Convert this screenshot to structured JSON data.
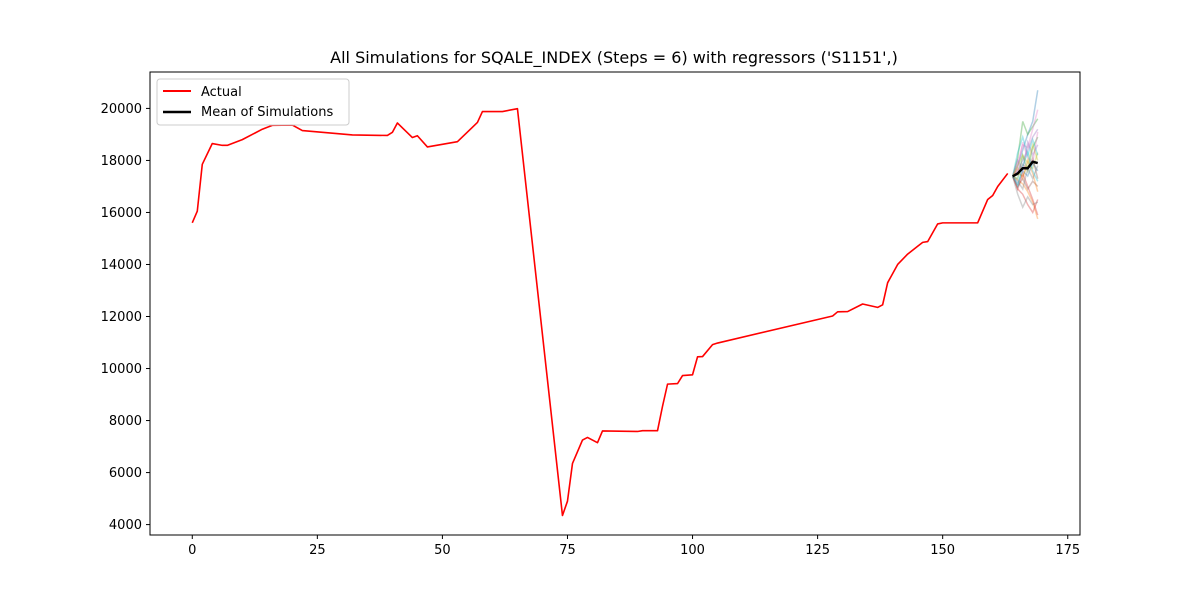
{
  "chart_data": {
    "type": "line",
    "title": "All Simulations for SQALE_INDEX (Steps = 6) with regressors ('S1151',)",
    "xlabel": "",
    "ylabel": "",
    "xlim": [
      -8.45,
      177.45
    ],
    "ylim": [
      3600,
      21400
    ],
    "xticks": [
      0,
      25,
      50,
      75,
      100,
      125,
      150,
      175
    ],
    "yticks": [
      4000,
      6000,
      8000,
      10000,
      12000,
      14000,
      16000,
      18000,
      20000
    ],
    "grid": false,
    "legend": {
      "placement": "top-left",
      "entries": [
        "Actual",
        "Mean of Simulations"
      ]
    },
    "series": [
      {
        "name": "Actual",
        "color": "#ff0000",
        "points": [
          [
            0,
            15600
          ],
          [
            1,
            16050
          ],
          [
            2,
            17850
          ],
          [
            4,
            18650
          ],
          [
            6,
            18580
          ],
          [
            7,
            18580
          ],
          [
            10,
            18800
          ],
          [
            14,
            19200
          ],
          [
            16,
            19350
          ],
          [
            20,
            19360
          ],
          [
            22,
            19150
          ],
          [
            32,
            18980
          ],
          [
            39,
            18960
          ],
          [
            40,
            19080
          ],
          [
            41,
            19440
          ],
          [
            44,
            18880
          ],
          [
            45,
            18950
          ],
          [
            47,
            18520
          ],
          [
            53,
            18720
          ],
          [
            57,
            19460
          ],
          [
            58,
            19880
          ],
          [
            62,
            19880
          ],
          [
            65,
            19990
          ],
          [
            74,
            4350
          ],
          [
            75,
            4900
          ],
          [
            76,
            6350
          ],
          [
            78,
            7250
          ],
          [
            79,
            7350
          ],
          [
            81,
            7150
          ],
          [
            82,
            7600
          ],
          [
            89,
            7580
          ],
          [
            90,
            7610
          ],
          [
            93,
            7610
          ],
          [
            94,
            8550
          ],
          [
            95,
            9400
          ],
          [
            97,
            9420
          ],
          [
            98,
            9730
          ],
          [
            100,
            9760
          ],
          [
            101,
            10450
          ],
          [
            102,
            10460
          ],
          [
            104,
            10920
          ],
          [
            105,
            10980
          ],
          [
            128,
            12020
          ],
          [
            129,
            12180
          ],
          [
            131,
            12190
          ],
          [
            134,
            12480
          ],
          [
            137,
            12350
          ],
          [
            138,
            12450
          ],
          [
            139,
            13300
          ],
          [
            141,
            14000
          ],
          [
            143,
            14400
          ],
          [
            145,
            14700
          ],
          [
            146,
            14850
          ],
          [
            147,
            14880
          ],
          [
            149,
            15560
          ],
          [
            150,
            15600
          ],
          [
            157,
            15600
          ],
          [
            159,
            16500
          ],
          [
            160,
            16650
          ],
          [
            161,
            17000
          ],
          [
            163,
            17500
          ]
        ]
      },
      {
        "name": "Mean of Simulations",
        "color": "#000000",
        "points": [
          [
            164,
            17390
          ],
          [
            165,
            17500
          ],
          [
            166,
            17700
          ],
          [
            167,
            17700
          ],
          [
            168,
            17950
          ],
          [
            169,
            17900
          ]
        ]
      }
    ],
    "simulations": {
      "x": [
        164,
        165,
        166,
        167,
        168,
        169
      ],
      "colors": [
        "#1f77b4",
        "#ff7f0e",
        "#2ca02c",
        "#d62728",
        "#9467bd",
        "#8c564b",
        "#e377c2",
        "#7f7f7f",
        "#bcbd22",
        "#17becf"
      ],
      "runs": [
        [
          17390,
          17800,
          18400,
          19000,
          19500,
          20700
        ],
        [
          17390,
          17250,
          17100,
          16800,
          16400,
          15750
        ],
        [
          17390,
          18100,
          19500,
          19000,
          19300,
          19600
        ],
        [
          17390,
          16900,
          16700,
          16300,
          16000,
          16500
        ],
        [
          17390,
          17600,
          18000,
          18400,
          18900,
          19200
        ],
        [
          17390,
          17000,
          17300,
          16900,
          17200,
          17000
        ],
        [
          17390,
          17900,
          18600,
          18500,
          19200,
          19950
        ],
        [
          17390,
          16700,
          16200,
          16600,
          16300,
          16400
        ],
        [
          17390,
          17500,
          17400,
          17800,
          17700,
          18300
        ],
        [
          17390,
          18300,
          18900,
          18200,
          18800,
          18200
        ],
        [
          17390,
          17100,
          17600,
          17400,
          17900,
          17600
        ],
        [
          17390,
          17700,
          17300,
          18000,
          17500,
          16800
        ],
        [
          17390,
          17300,
          18200,
          17600,
          18500,
          18900
        ],
        [
          17390,
          16900,
          17500,
          17000,
          16500,
          15900
        ],
        [
          17390,
          18000,
          17600,
          18700,
          18200,
          18600
        ],
        [
          17390,
          17450,
          17850,
          17650,
          18100,
          17300
        ],
        [
          17390,
          17650,
          18700,
          18100,
          17900,
          19100
        ],
        [
          17390,
          17200,
          16900,
          17700,
          17300,
          17800
        ],
        [
          17390,
          17800,
          18200,
          17900,
          18600,
          18000
        ],
        [
          17390,
          17000,
          17800,
          18300,
          17600,
          17200
        ]
      ]
    }
  }
}
